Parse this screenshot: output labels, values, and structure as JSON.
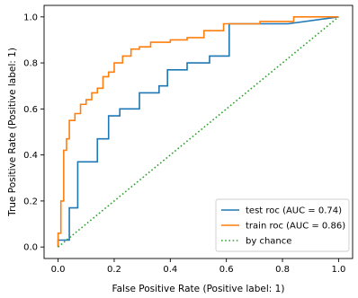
{
  "chart_data": {
    "type": "line",
    "xlabel": "False Positive Rate (Positive label: 1)",
    "ylabel": "True Positive Rate (Positive label: 1)",
    "xlim": [
      -0.05,
      1.05
    ],
    "ylim": [
      -0.05,
      1.05
    ],
    "xticks": [
      "0.0",
      "0.2",
      "0.4",
      "0.6",
      "0.8",
      "1.0"
    ],
    "yticks": [
      "0.0",
      "0.2",
      "0.4",
      "0.6",
      "0.8",
      "1.0"
    ],
    "grid": false,
    "legend_position": "lower-right",
    "series": [
      {
        "name": "test roc (AUC = 0.74)",
        "color": "#1f77b4",
        "style": "solid",
        "x": [
          0,
          0,
          0.04,
          0.04,
          0.07,
          0.07,
          0.14,
          0.14,
          0.18,
          0.18,
          0.22,
          0.22,
          0.29,
          0.29,
          0.36,
          0.36,
          0.39,
          0.39,
          0.46,
          0.46,
          0.54,
          0.54,
          0.61,
          0.61,
          0.64,
          0.64,
          0.82,
          0.82,
          1.0
        ],
        "y": [
          0,
          0.03,
          0.03,
          0.17,
          0.17,
          0.37,
          0.37,
          0.47,
          0.47,
          0.57,
          0.57,
          0.6,
          0.6,
          0.67,
          0.67,
          0.7,
          0.7,
          0.77,
          0.77,
          0.8,
          0.8,
          0.83,
          0.83,
          0.97,
          0.97,
          0.97,
          0.97,
          0.97,
          1.0
        ]
      },
      {
        "name": "train roc (AUC = 0.86)",
        "color": "#ff7f0e",
        "style": "solid",
        "x": [
          0,
          0,
          0.01,
          0.01,
          0.02,
          0.02,
          0.03,
          0.03,
          0.04,
          0.04,
          0.06,
          0.06,
          0.08,
          0.08,
          0.1,
          0.1,
          0.12,
          0.12,
          0.14,
          0.14,
          0.16,
          0.16,
          0.18,
          0.18,
          0.2,
          0.2,
          0.23,
          0.23,
          0.26,
          0.26,
          0.29,
          0.29,
          0.33,
          0.33,
          0.4,
          0.4,
          0.46,
          0.46,
          0.52,
          0.52,
          0.59,
          0.59,
          0.72,
          0.72,
          0.84,
          0.84,
          1.0
        ],
        "y": [
          0,
          0.06,
          0.06,
          0.2,
          0.2,
          0.42,
          0.42,
          0.47,
          0.47,
          0.55,
          0.55,
          0.58,
          0.58,
          0.62,
          0.62,
          0.64,
          0.64,
          0.67,
          0.67,
          0.69,
          0.69,
          0.74,
          0.74,
          0.76,
          0.76,
          0.8,
          0.8,
          0.83,
          0.83,
          0.86,
          0.86,
          0.87,
          0.87,
          0.89,
          0.89,
          0.9,
          0.9,
          0.91,
          0.91,
          0.94,
          0.94,
          0.97,
          0.97,
          0.98,
          0.98,
          1.0,
          1.0
        ]
      },
      {
        "name": "by chance",
        "color": "#2ca02c",
        "style": "dotted",
        "x": [
          0,
          1
        ],
        "y": [
          0,
          1
        ]
      }
    ]
  }
}
